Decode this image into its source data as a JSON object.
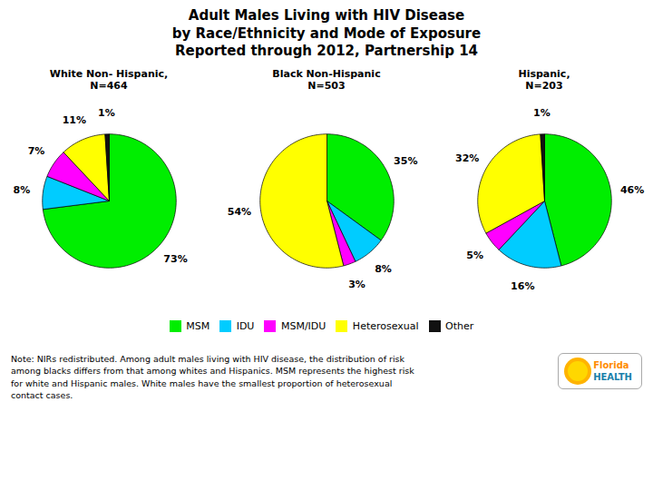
{
  "chart_data": {
    "type": "pie",
    "title": "Adult Males Living with HIV Disease\nby Race/Ethnicity and Mode of Exposure\nReported through 2012, Partnership 14",
    "categories": [
      "MSM",
      "IDU",
      "MSM/IDU",
      "Heterosexual",
      "Other"
    ],
    "colors": [
      "#00EE00",
      "#00CCFF",
      "#FF00FF",
      "#FFFF00",
      "#111111"
    ],
    "legend": "bottom",
    "data_labels": true,
    "pies": [
      {
        "title": "White Non- Hispanic,\nN=464",
        "values": [
          73,
          8,
          7,
          11,
          1
        ],
        "value_labels": [
          "73%",
          "8%",
          "7%",
          "11%",
          "1%"
        ]
      },
      {
        "title": "Black Non-Hispanic\nN=503",
        "values": [
          35,
          8,
          3,
          54,
          0
        ],
        "value_labels": [
          "35%",
          "8%",
          "3%",
          "54%",
          null
        ]
      },
      {
        "title": "Hispanic,\nN=203",
        "values": [
          46,
          16,
          5,
          32,
          1
        ],
        "value_labels": [
          "46%",
          "16%",
          "5%",
          "32%",
          "1%"
        ]
      }
    ],
    "annotations": [
      "Note: NIRs redistributed.   Among adult males living with HIV disease, the distribution of risk\namong blacks differs from that among whites and Hispanics.  MSM represents the highest risk\nfor white and Hispanic males.  White males have the smallest proportion of heterosexual\ncontact cases.",
      "Florida",
      "HEALTH"
    ]
  }
}
